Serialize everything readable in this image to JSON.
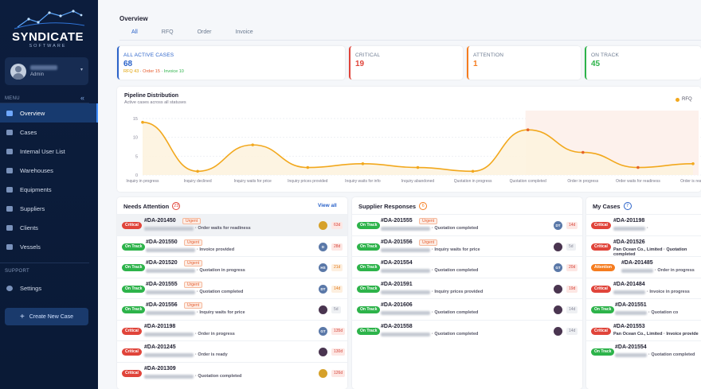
{
  "brand": {
    "title": "SYNDICATE",
    "subtitle": "SOFTWARE"
  },
  "user": {
    "role": "Admin"
  },
  "sidebar": {
    "menu_label": "MENU",
    "support_label": "SUPPORT",
    "items": [
      {
        "label": "Overview",
        "icon": "overview-icon",
        "active": true
      },
      {
        "label": "Cases",
        "icon": "cases-icon"
      },
      {
        "label": "Internal User List",
        "icon": "users-icon"
      },
      {
        "label": "Warehouses",
        "icon": "warehouse-icon"
      },
      {
        "label": "Equipments",
        "icon": "equipment-icon"
      },
      {
        "label": "Suppliers",
        "icon": "suppliers-icon"
      },
      {
        "label": "Clients",
        "icon": "clients-icon"
      },
      {
        "label": "Vessels",
        "icon": "vessel-icon"
      }
    ],
    "settings_label": "Settings",
    "create_label": "Create New Case"
  },
  "header": {
    "title": "Overview",
    "tabs": [
      "All",
      "RFQ",
      "Order",
      "Invoice"
    ]
  },
  "stats": {
    "all": {
      "label": "ALL ACTIVE CASES",
      "value": "68",
      "rfq": "RFQ 43",
      "order": "Order 15",
      "invoice": "Invoice 10",
      "sep": "·"
    },
    "critical": {
      "label": "CRITICAL",
      "value": "19"
    },
    "attention": {
      "label": "ATTENTION",
      "value": "1"
    },
    "ontrack": {
      "label": "ON TRACK",
      "value": "45"
    }
  },
  "colors": {
    "critical": "#e0443a",
    "attention": "#f57c1f",
    "ontrack": "#2db34a",
    "rfq": "#f2a81d",
    "accent": "#2a62c9"
  },
  "chart": {
    "title": "Pipeline Distribution",
    "subtitle": "Active cases across all statuses",
    "legend": "RFQ"
  },
  "chart_data": {
    "type": "line",
    "categories": [
      "Inquiry in progress",
      "Inquiry declined",
      "Inquiry waits for price",
      "Inquiry prices provided",
      "Inquiry waits for info",
      "Inquiry abandoned",
      "Quotation in progress",
      "Quotation completed",
      "Order in progress",
      "Order waits for readiness",
      "Order is ready"
    ],
    "series": [
      {
        "name": "RFQ",
        "values": [
          14,
          1,
          8,
          2,
          3,
          2,
          1,
          12,
          6,
          2,
          3
        ]
      }
    ],
    "ylim": [
      0,
      15
    ],
    "yticks": [
      0,
      5,
      10,
      15
    ]
  },
  "needs_attention": {
    "title": "Needs Attention",
    "count": "23",
    "view_all": "View all",
    "rows": [
      {
        "badge": "Critical",
        "id": "#DA-201450",
        "urgent": "Urgent",
        "status": "Order waits for readiness",
        "avatar": "",
        "days": "63d",
        "dtone": "red",
        "avtone": "gold"
      },
      {
        "badge": "On Track",
        "id": "#DA-201550",
        "urgent": "Urgent",
        "status": "Invoice provided",
        "avatar": "D",
        "days": "28d",
        "dtone": "red",
        "avtone": "blue"
      },
      {
        "badge": "On Track",
        "id": "#DA-201520",
        "urgent": "Urgent",
        "status": "Quotation in progress",
        "avatar": "HS",
        "days": "21d",
        "dtone": "orange",
        "avtone": "blue"
      },
      {
        "badge": "On Track",
        "id": "#DA-201555",
        "urgent": "Urgent",
        "status": "Quotation completed",
        "avatar": "DT",
        "days": "14d",
        "dtone": "orange",
        "avtone": "blue"
      },
      {
        "badge": "On Track",
        "id": "#DA-201556",
        "urgent": "Urgent",
        "status": "Inquiry waits for price",
        "avatar": "",
        "days": "5d",
        "dtone": "gray",
        "avtone": "dark"
      },
      {
        "badge": "Critical",
        "id": "#DA-201198",
        "urgent": "",
        "status": "Order in progress",
        "avatar": "GT",
        "days": "135d",
        "dtone": "red",
        "avtone": "blue"
      },
      {
        "badge": "Critical",
        "id": "#DA-201245",
        "urgent": "",
        "status": "Order is ready",
        "avatar": "",
        "days": "130d",
        "dtone": "red",
        "avtone": "dark"
      },
      {
        "badge": "Critical",
        "id": "#DA-201309",
        "urgent": "",
        "status": "Quotation completed",
        "avatar": "",
        "days": "126d",
        "dtone": "red",
        "avtone": "gold"
      }
    ]
  },
  "supplier_responses": {
    "title": "Supplier Responses",
    "count": "6",
    "rows": [
      {
        "badge": "On Track",
        "id": "#DA-201555",
        "urgent": "Urgent",
        "status": "Quotation completed",
        "avatar": "DT",
        "days": "14d",
        "dtone": "red",
        "avtone": "blue"
      },
      {
        "badge": "On Track",
        "id": "#DA-201556",
        "urgent": "Urgent",
        "status": "Inquiry waits for price",
        "avatar": "",
        "days": "5d",
        "dtone": "gray",
        "avtone": "dark"
      },
      {
        "badge": "On Track",
        "id": "#DA-201554",
        "urgent": "",
        "status": "Quotation completed",
        "avatar": "GT",
        "days": "20d",
        "dtone": "red",
        "avtone": "blue"
      },
      {
        "badge": "On Track",
        "id": "#DA-201591",
        "urgent": "",
        "status": "Inquiry prices provided",
        "avatar": "",
        "days": "19d",
        "dtone": "red",
        "avtone": "dark"
      },
      {
        "badge": "On Track",
        "id": "#DA-201606",
        "urgent": "",
        "status": "Quotation completed",
        "avatar": "",
        "days": "14d",
        "dtone": "gray",
        "avtone": "dark"
      },
      {
        "badge": "On Track",
        "id": "#DA-201558",
        "urgent": "",
        "status": "Quotation completed",
        "avatar": "",
        "days": "14d",
        "dtone": "gray",
        "avtone": "dark"
      }
    ]
  },
  "my_cases": {
    "title": "My Cases",
    "count": "7",
    "rows": [
      {
        "badge": "Critical",
        "id": "#DA-201198",
        "status": "",
        "company": "",
        "sep": ""
      },
      {
        "badge": "Critical",
        "id": "#DA-201526",
        "company": "Pan Ocean Co., Limited",
        "sep": "·",
        "status": "Quotation completed"
      },
      {
        "badge": "Attention",
        "id": "#DA-201485",
        "status": "Order in progress",
        "company": "",
        "sep": ""
      },
      {
        "badge": "Critical",
        "id": "#DA-201484",
        "status": "Invoice in progress",
        "company": "",
        "sep": ""
      },
      {
        "badge": "On Track",
        "id": "#DA-201551",
        "status": "Quotation co",
        "company": "",
        "sep": ""
      },
      {
        "badge": "Critical",
        "id": "#DA-201553",
        "company": "Pan Ocean Co., Limited",
        "sep": "·",
        "status": "Invoice provide"
      },
      {
        "badge": "On Track",
        "id": "#DA-201554",
        "status": "Quotation completed",
        "company": "",
        "sep": ""
      }
    ]
  }
}
